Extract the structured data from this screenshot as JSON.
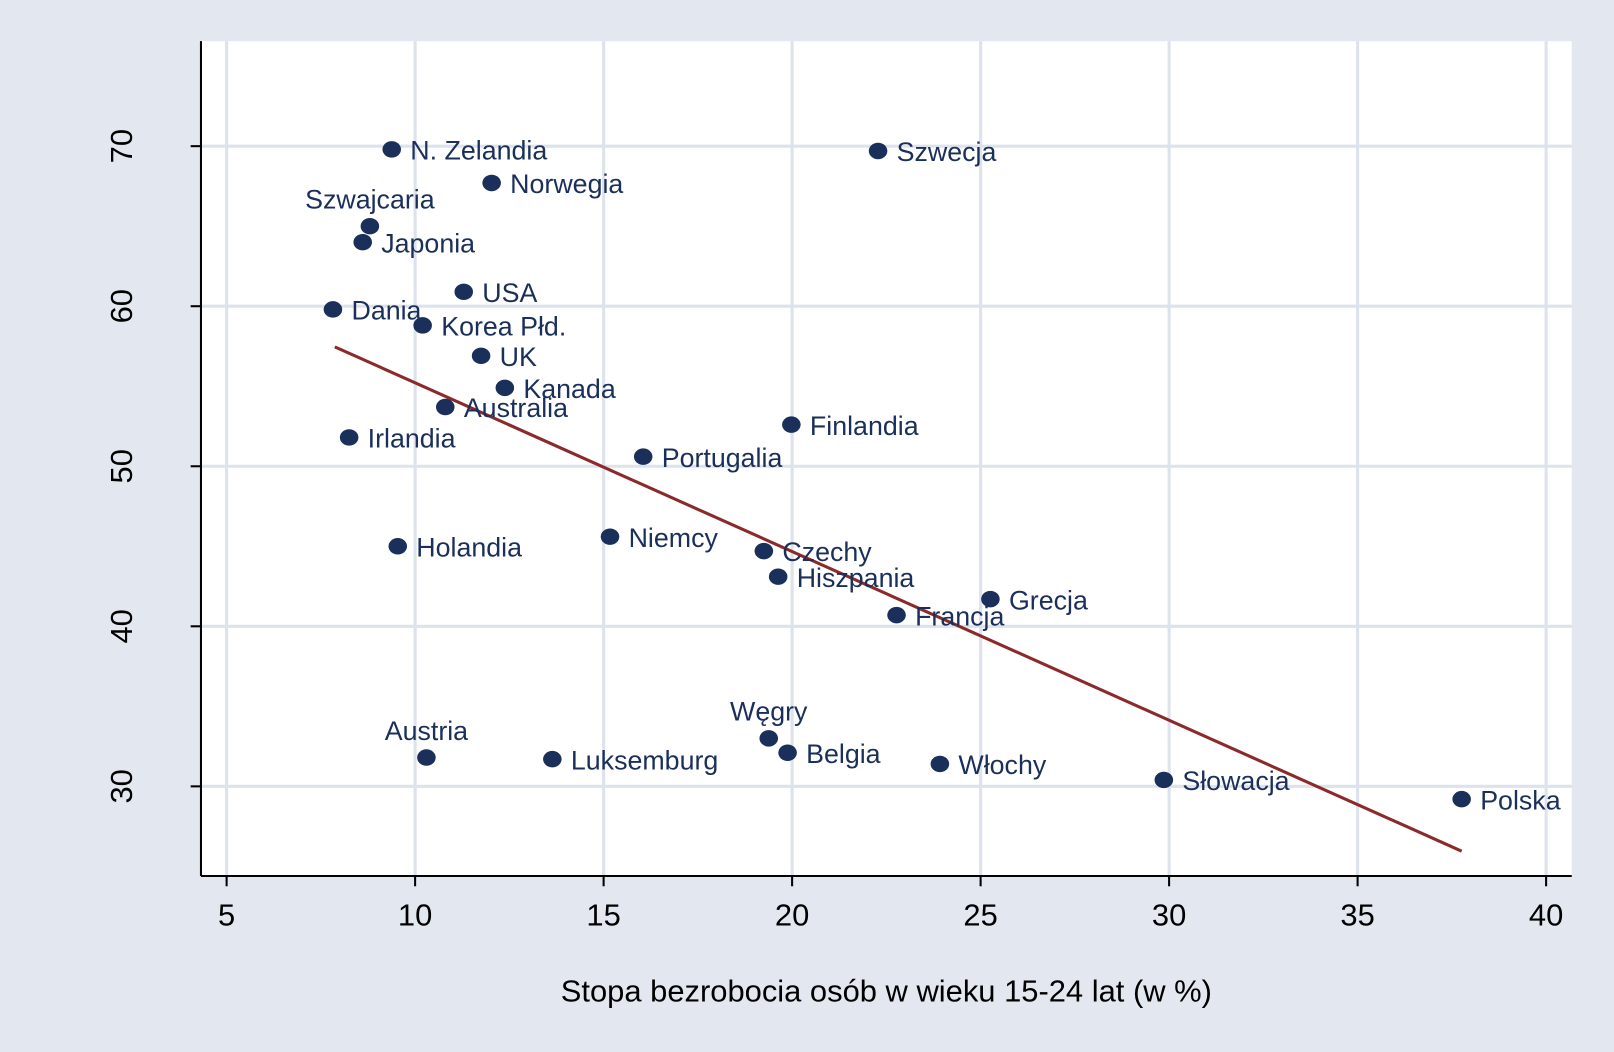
{
  "chart_data": {
    "type": "scatter",
    "x_label": "Stopa bezrobocia osób w wieku 15-24 lat (w %)",
    "labels": [
      "N. Zelandia",
      "Szwecja",
      "Norwegia",
      "Szwajcaria",
      "Japonia",
      "USA",
      "Dania",
      "Korea Płd.",
      "UK",
      "Kanada",
      "Australia",
      "Finlandia",
      "Irlandia",
      "Portugalia",
      "Niemcy",
      "Holandia",
      "Czechy",
      "Hiszpania",
      "Grecja",
      "Francja",
      "Węgry",
      "Belgia",
      "Austria",
      "Luksemburg",
      "Włochy",
      "Słowacja",
      "Polska"
    ],
    "x": [
      9.38,
      22.28,
      12.03,
      8.8,
      8.61,
      11.29,
      7.82,
      10.2,
      11.75,
      12.38,
      10.8,
      19.98,
      8.25,
      16.05,
      15.17,
      9.54,
      19.25,
      19.63,
      25.26,
      22.77,
      19.38,
      19.88,
      10.3,
      13.64,
      23.92,
      29.86,
      37.76
    ],
    "values": [
      69.8,
      69.7,
      67.7,
      65.0,
      64.0,
      60.9,
      59.8,
      58.8,
      56.9,
      54.9,
      53.7,
      52.6,
      51.8,
      50.6,
      45.6,
      45.0,
      44.7,
      43.1,
      41.7,
      40.7,
      33.0,
      32.1,
      31.8,
      31.7,
      31.4,
      30.4,
      29.2
    ],
    "color": "#1a2f5a",
    "trend": {
      "x": [
        7.87,
        37.76
      ],
      "y": [
        57.46,
        25.95
      ],
      "color": "#8b2a2a"
    },
    "xlim": [
      4.32,
      40.68
    ],
    "xticks": [
      5,
      10,
      15,
      20,
      25,
      30,
      35,
      40
    ],
    "ylim": [
      24.4,
      76.56
    ],
    "yticks": [
      30,
      40,
      50,
      60,
      70
    ],
    "grid": true
  }
}
